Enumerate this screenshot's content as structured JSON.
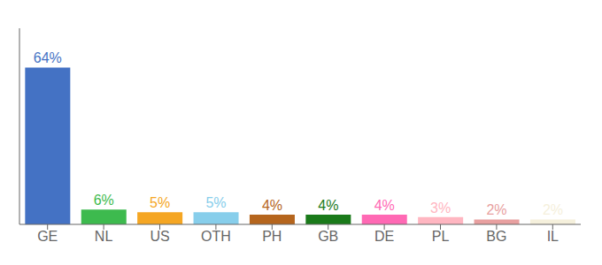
{
  "chart_data": {
    "type": "bar",
    "categories": [
      "GE",
      "NL",
      "US",
      "OTH",
      "PH",
      "GB",
      "DE",
      "PL",
      "BG",
      "IL"
    ],
    "values": [
      64,
      6,
      5,
      5,
      4,
      4,
      4,
      3,
      2,
      2
    ],
    "value_labels": [
      "64%",
      "6%",
      "5%",
      "5%",
      "4%",
      "4%",
      "4%",
      "3%",
      "2%",
      "2%"
    ],
    "data_labels": true,
    "colors": [
      "#4472c4",
      "#3dba4e",
      "#f5a623",
      "#87ceeb",
      "#b5651d",
      "#1a7a1a",
      "#ff69b4",
      "#ffb6c1",
      "#e8a0a0",
      "#f5f0dc"
    ],
    "ylim": [
      0,
      80
    ],
    "tick_labels": "x",
    "grid": false
  }
}
